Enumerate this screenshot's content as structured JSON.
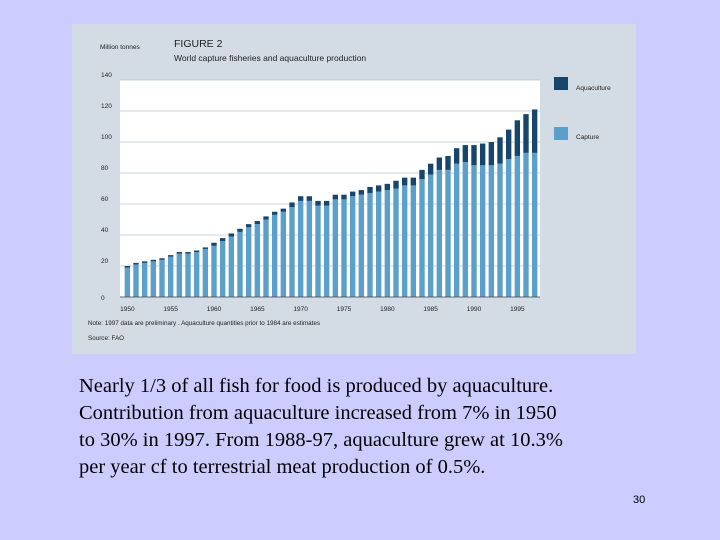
{
  "colors": {
    "slide_background": "#ccccff",
    "figure_background": "#d3dbe4",
    "aquaculture": "#17456b",
    "capture": "#5ba0cc"
  },
  "chart_data": {
    "type": "bar",
    "stacked": true,
    "figure_label": "FIGURE 2",
    "title": "World capture fisheries and aquaculture production",
    "ylabel": "Million tonnes",
    "xlabel": "",
    "ylim": [
      0,
      140
    ],
    "yticks": [
      "0",
      "20",
      "40",
      "60",
      "80",
      "100",
      "120",
      "140"
    ],
    "xtick_labels": [
      "1950",
      "1955",
      "1960",
      "1965",
      "1970",
      "1975",
      "1980",
      "1985",
      "1990",
      "1995"
    ],
    "grid": true,
    "legend_position": "right",
    "categories": [
      "1950",
      "1951",
      "1952",
      "1953",
      "1954",
      "1955",
      "1956",
      "1957",
      "1958",
      "1959",
      "1960",
      "1961",
      "1962",
      "1963",
      "1964",
      "1965",
      "1966",
      "1967",
      "1968",
      "1969",
      "1970",
      "1971",
      "1972",
      "1973",
      "1974",
      "1975",
      "1976",
      "1977",
      "1978",
      "1979",
      "1980",
      "1981",
      "1982",
      "1983",
      "1984",
      "1985",
      "1986",
      "1987",
      "1988",
      "1989",
      "1990",
      "1991",
      "1992",
      "1993",
      "1994",
      "1995",
      "1996",
      "1997"
    ],
    "series": [
      {
        "name": "Capture",
        "values": [
          19,
          21,
          22,
          23,
          24,
          26,
          28,
          28,
          29,
          31,
          33,
          36,
          39,
          42,
          45,
          47,
          50,
          53,
          55,
          58,
          62,
          62,
          59,
          59,
          63,
          63,
          65,
          66,
          67,
          68,
          69,
          70,
          72,
          72,
          76,
          79,
          82,
          82,
          86,
          87,
          85,
          85,
          85,
          86,
          89,
          91,
          93,
          93
        ]
      },
      {
        "name": "Aquaculture",
        "values": [
          1,
          1,
          1,
          1,
          1,
          1,
          1,
          1,
          1,
          1,
          2,
          2,
          2,
          2,
          2,
          2,
          2,
          2,
          2,
          3,
          3,
          3,
          3,
          3,
          3,
          3,
          3,
          3,
          4,
          4,
          4,
          5,
          5,
          5,
          6,
          7,
          8,
          9,
          10,
          11,
          13,
          14,
          15,
          17,
          19,
          23,
          25,
          28
        ]
      }
    ],
    "notes": [
      "Note: 1997 data are preliminary . Aquaculture quantities prior to 1984 are estimates",
      "Source: FAO"
    ]
  },
  "caption_lines": [
    "Nearly 1/3 of all fish for food is produced by aquaculture.",
    "Contribution from aquaculture increased from 7% in 1950",
    "to 30% in 1997. From 1988-97, aquaculture grew at 10.3%",
    "per year cf to terrestrial meat production of 0.5%."
  ],
  "page_number": "30"
}
